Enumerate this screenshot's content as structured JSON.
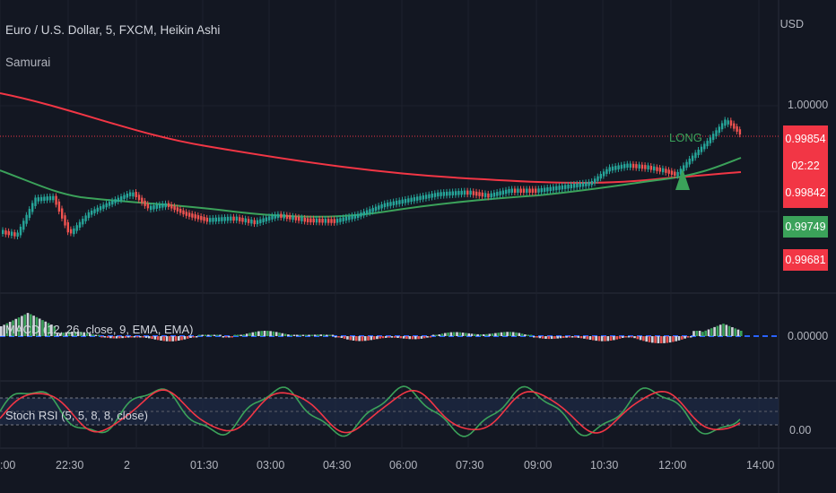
{
  "header": {
    "symbol_title": "Euro / U.S. Dollar, 5, FXCM, Heikin Ashi",
    "indicator_name": "Samurai",
    "currency": "USD"
  },
  "price_axis": {
    "tick_top": "1.00000",
    "current_price": "0.99854",
    "countdown": "02:22",
    "price_tag_2": "0.99842",
    "green_ma_tag": "0.99749",
    "red_ma_tag": "0.99681"
  },
  "signal": {
    "label": "LONG"
  },
  "macd_panel": {
    "label": "MACD (12, 26, close, 9, EMA, EMA)",
    "tick": "0.00000"
  },
  "stoch_panel": {
    "label": "Stoch RSI (5, 5, 8, 8, close)",
    "tick": "0.00"
  },
  "time_axis": {
    "labels": [
      ":00",
      "22:30",
      "2",
      "01:30",
      "03:00",
      "04:30",
      "06:00",
      "07:30",
      "09:00",
      "10:30",
      "12:00",
      "14:00"
    ]
  },
  "colors": {
    "background": "#131722",
    "bull": "#26a69a",
    "bear": "#ef5350",
    "ma_red": "#f23645",
    "ma_green": "#3ba25a",
    "macd_zero": "#2962ff"
  }
}
